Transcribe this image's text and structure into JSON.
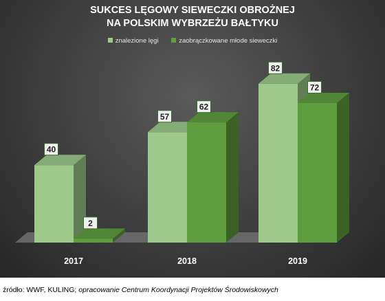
{
  "chart_data": {
    "type": "bar",
    "title_lines": [
      "SUKCES LĘGOWY SIEWECZKI OBROŻNEJ",
      "NA POLSKIM WYBRZEŻU BAŁTYKU"
    ],
    "categories": [
      "2017",
      "2018",
      "2019"
    ],
    "series": [
      {
        "name": "znalezione lęgi",
        "values": [
          40,
          57,
          82
        ],
        "color": "#9dc98b"
      },
      {
        "name": "zaobrączkowane młode sieweczki",
        "values": [
          2,
          62,
          72
        ],
        "color": "#5e9e3f"
      }
    ],
    "ylim": [
      0,
      100
    ],
    "grid": false,
    "legend_position": "top",
    "data_labels": true,
    "three_d": true
  },
  "source": {
    "prefix": "źródło: WWF, KULING; ",
    "italic": "opracowanie Centrum Koordynacji Projektów Środowiskowych"
  },
  "colors": {
    "background_dark": "#2b2b2b",
    "floor": "#6b6b6b",
    "label_box_fill": "#efefef",
    "label_box_stroke": "#3b6b2a"
  }
}
